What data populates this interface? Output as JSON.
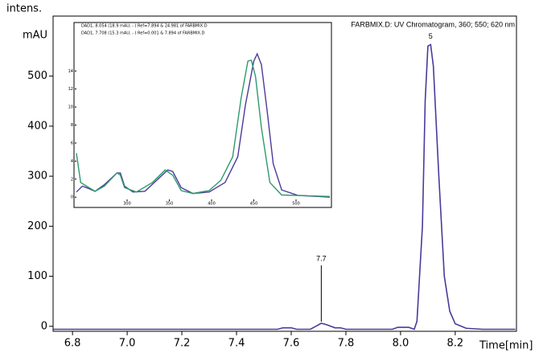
{
  "chart_data": [
    {
      "type": "line",
      "title": "FARBMIX.D: UV Chromatogram, 360; 550; 620 nm",
      "y_label_top": "intens.",
      "y_label": "mAU",
      "x_label": "Time[min]",
      "xlim": [
        6.729,
        8.424
      ],
      "xticks": [
        {
          "value": 6.8,
          "label": "6.8"
        },
        {
          "value": 7.0,
          "label": "7.0"
        },
        {
          "value": 7.2,
          "label": "7.2"
        },
        {
          "value": 7.4,
          "label": "7.4"
        },
        {
          "value": 7.6,
          "label": "7.6"
        },
        {
          "value": 7.8,
          "label": "7.8"
        },
        {
          "value": 8.0,
          "label": "8.0"
        },
        {
          "value": 8.2,
          "label": "8.2"
        }
      ],
      "ylim": [
        -10,
        620
      ],
      "yticks": [
        0,
        100,
        200,
        300,
        400,
        500
      ],
      "x": [
        6.73,
        7.55,
        7.57,
        7.6,
        7.62,
        7.67,
        7.69,
        7.71,
        7.73,
        7.76,
        7.78,
        7.8,
        7.97,
        7.99,
        8.03,
        8.05,
        8.06,
        8.08,
        8.09,
        8.1,
        8.11,
        8.12,
        8.14,
        8.16,
        8.18,
        8.2,
        8.24,
        8.3,
        8.42
      ],
      "series": [
        {
          "color": "#4b3a9a",
          "values": [
            -6,
            -6,
            -3,
            -3,
            -6,
            -6,
            0,
            6,
            3,
            -3,
            -3,
            -6,
            -6,
            -2,
            -2,
            -6,
            10,
            200,
            450,
            560,
            563,
            520,
            300,
            100,
            30,
            5,
            -4,
            -6,
            -6
          ]
        }
      ],
      "annotations": [
        {
          "text": "7.7",
          "x": 7.71,
          "y": 6
        },
        {
          "text": "5",
          "x": 8.11,
          "y": 563
        }
      ]
    },
    {
      "type": "line",
      "xlim": [
        240,
        540
      ],
      "xticks": [
        300,
        350,
        400,
        450,
        500
      ],
      "ylim": [
        -0.25,
        16.7
      ],
      "yticks": [
        0,
        2,
        4,
        6,
        8,
        10,
        12,
        14
      ],
      "series": [
        {
          "name": "DAD1, 8.054 (18.9 mAU, - ) Ref=7.894 & 24.981 of FARBMIX.D",
          "color": "#4b3a9a",
          "x": [
            240,
            247,
            254,
            262,
            273,
            288,
            292,
            297,
            307,
            321,
            335,
            348,
            354,
            364,
            378,
            397,
            416,
            431,
            440,
            450,
            454,
            459,
            466,
            473,
            483,
            502,
            540
          ],
          "values": [
            0.57,
            1.22,
            0.98,
            0.65,
            1.38,
            2.69,
            2.69,
            1.22,
            0.57,
            0.65,
            1.87,
            3.01,
            2.85,
            1.06,
            0.41,
            0.57,
            1.63,
            4.48,
            10.2,
            15.1,
            15.9,
            14.7,
            9.4,
            3.7,
            0.8,
            0.2,
            0
          ]
        },
        {
          "name": "DAD1, 7.708 (15.3 mAU, - ) Ref=0.001 & 7.894 of FARBMIX.D",
          "color": "#2e9a6e",
          "x": [
            240,
            245,
            252,
            262,
            273,
            288,
            292,
            297,
            311,
            330,
            345,
            354,
            364,
            378,
            397,
            411,
            425,
            435,
            443,
            447,
            452,
            459,
            469,
            483,
            540
          ],
          "values": [
            4.88,
            1.63,
            1.22,
            0.65,
            1.22,
            2.69,
            2.44,
            1.06,
            0.57,
            1.63,
            3.01,
            2.44,
            0.73,
            0.41,
            0.73,
            1.87,
            4.48,
            11.0,
            15.1,
            15.2,
            13.4,
            7.7,
            1.63,
            0.24,
            0.08
          ]
        }
      ]
    }
  ]
}
